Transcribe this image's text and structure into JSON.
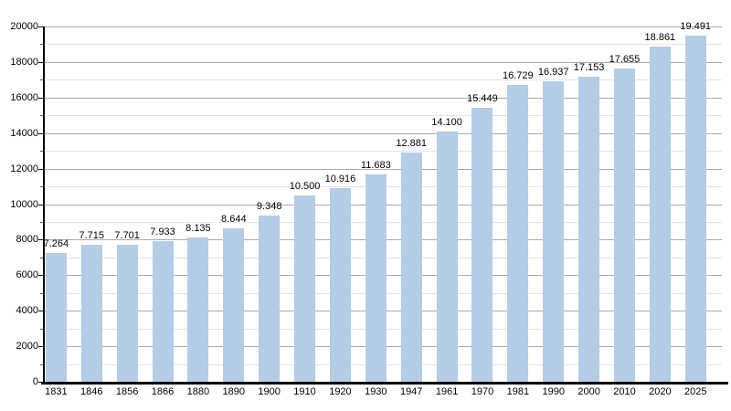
{
  "chart_data": {
    "type": "bar",
    "categories": [
      "1831",
      "1846",
      "1856",
      "1866",
      "1880",
      "1890",
      "1900",
      "1910",
      "1920",
      "1930",
      "1947",
      "1961",
      "1970",
      "1981",
      "1990",
      "2000",
      "2010",
      "2020",
      "2025"
    ],
    "values": [
      7264,
      7715,
      7701,
      7933,
      8135,
      8644,
      9348,
      10500,
      10916,
      11683,
      12881,
      14100,
      15449,
      16729,
      16937,
      17153,
      17655,
      18861,
      19491
    ],
    "value_labels": [
      "7.264",
      "7.715",
      "7.701",
      "7.933",
      "8.135",
      "8.644",
      "9.348",
      "10.500",
      "10.916",
      "11.683",
      "12.881",
      "14.100",
      "15.449",
      "16.729",
      "16.937",
      "17.153",
      "17.655",
      "18.861",
      "19.491"
    ],
    "y_tick_labels": [
      "0",
      "2000",
      "4000",
      "6000",
      "8000",
      "10000",
      "12000",
      "14000",
      "16000",
      "18000",
      "20000"
    ],
    "ylim": [
      0,
      20000
    ],
    "y_major_step": 2000,
    "y_minor_step": 1000,
    "grid": true,
    "legend": null,
    "xlabel": "",
    "ylabel": "",
    "colors": {
      "bar": "#b4cce5",
      "major_grid": "#aaaaaa",
      "minor_grid": "#e4e4e4",
      "axis": "#000000",
      "text": "#000000"
    }
  }
}
